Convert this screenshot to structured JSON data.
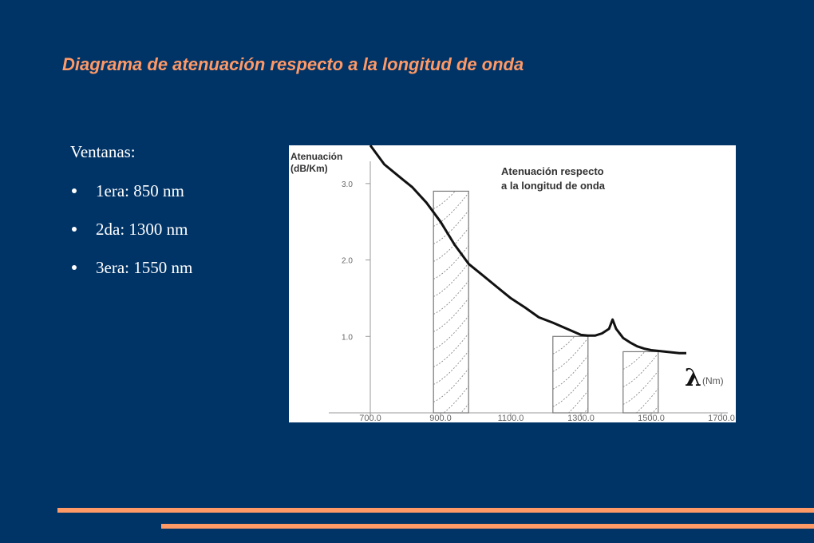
{
  "slide": {
    "title": "Diagrama de atenuación respecto a la longitud de onda",
    "windows_heading": "Ventanas:",
    "bullets": [
      "1era: 850 nm",
      "2da: 1300  nm",
      "3era: 1550 nm"
    ]
  },
  "colors": {
    "background": "#003366",
    "title": "#FF9966",
    "rules": "#FF9966",
    "text": "#ffffff"
  },
  "chart_data": {
    "type": "line",
    "title": "Atenuación respecto a la longitud de onda",
    "ylabel": "Atenuación (dB/Km)",
    "xlabel_symbol": "λ",
    "xlabel_unit": "(Nm)",
    "x_ticks": [
      "700.0",
      "900.0",
      "1100.0",
      "1300.0",
      "1500.0",
      "1700.0"
    ],
    "y_ticks": [
      "1.0",
      "2.0",
      "3.0"
    ],
    "xlim": [
      700,
      1700
    ],
    "ylim": [
      0,
      3.5
    ],
    "series": [
      {
        "x": [
          700,
          740,
          780,
          820,
          860,
          900,
          940,
          980,
          1020,
          1060,
          1100,
          1140,
          1180,
          1220,
          1260,
          1300,
          1320,
          1340,
          1360,
          1380,
          1390,
          1400,
          1420,
          1440,
          1460,
          1480,
          1500,
          1540,
          1580,
          1600
        ],
        "y": [
          3.5,
          3.25,
          3.1,
          2.95,
          2.75,
          2.5,
          2.2,
          1.95,
          1.8,
          1.65,
          1.5,
          1.38,
          1.25,
          1.18,
          1.1,
          1.02,
          1.01,
          1.01,
          1.04,
          1.1,
          1.22,
          1.1,
          0.98,
          0.92,
          0.87,
          0.84,
          0.82,
          0.8,
          0.78,
          0.78
        ]
      }
    ],
    "windows": [
      {
        "x_start": 880,
        "x_end": 980,
        "height": 2.9
      },
      {
        "x_start": 1220,
        "x_end": 1320,
        "height": 1.0
      },
      {
        "x_start": 1420,
        "x_end": 1520,
        "height": 0.8
      }
    ]
  }
}
